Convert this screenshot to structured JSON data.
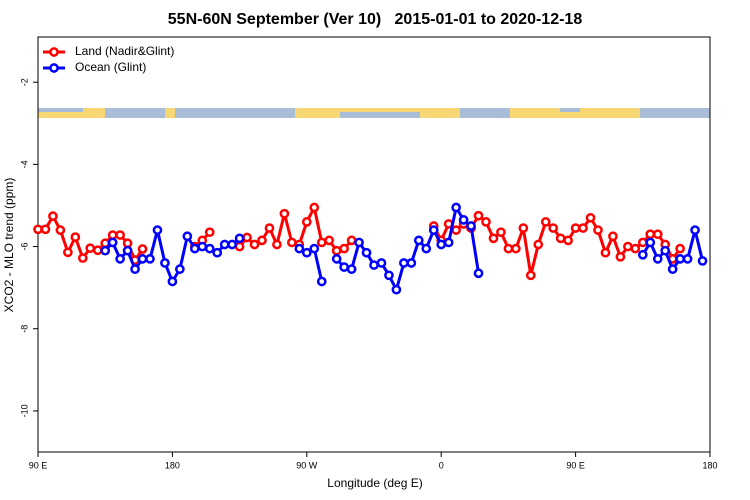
{
  "chart_data": {
    "type": "line",
    "title": "55N-60N September (Ver 10)   2015-01-01 to 2020-12-18",
    "x_label": "Longitude (deg E)",
    "y_label": "XCO2 - MLO trend (ppm)",
    "x": [
      90,
      95,
      100,
      105,
      110,
      115,
      120,
      125,
      130,
      135,
      140,
      145,
      150,
      155,
      160,
      165,
      170,
      175,
      180,
      185,
      190,
      195,
      200,
      205,
      210,
      215,
      220,
      225,
      230,
      235,
      240,
      245,
      250,
      255,
      260,
      265,
      270,
      275,
      280,
      285,
      290,
      295,
      300,
      305,
      310,
      315,
      320,
      325,
      330,
      335,
      340,
      345,
      350,
      355,
      360,
      365,
      370,
      375,
      380,
      385,
      390,
      395,
      400,
      405,
      410,
      415,
      420,
      425,
      430,
      435,
      440,
      445,
      450,
      455,
      460,
      465,
      470,
      475,
      480,
      485,
      490,
      495,
      500,
      505,
      510,
      515,
      520,
      525,
      530,
      535,
      540
    ],
    "series": [
      {
        "name": "Land (Nadir&Glint)",
        "color": "#ff0000",
        "values": [
          -5.58,
          -5.58,
          -5.26,
          -5.6,
          -6.14,
          -5.77,
          -6.28,
          -6.04,
          -6.09,
          -5.92,
          -5.72,
          -5.72,
          -5.92,
          -6.33,
          -6.06,
          null,
          null,
          null,
          null,
          null,
          null,
          -6.0,
          -5.85,
          -5.65,
          null,
          null,
          null,
          -6.0,
          -5.78,
          -5.95,
          -5.85,
          -5.55,
          -5.95,
          -5.2,
          -5.9,
          -5.95,
          -5.4,
          -5.05,
          -5.9,
          -5.85,
          -6.1,
          -6.05,
          -5.85,
          null,
          null,
          null,
          null,
          null,
          null,
          null,
          null,
          null,
          null,
          -5.5,
          -5.85,
          -5.45,
          -5.6,
          -5.45,
          -5.55,
          -5.25,
          -5.4,
          -5.8,
          -5.65,
          -6.05,
          -6.05,
          -5.55,
          -6.7,
          -5.95,
          -5.4,
          -5.55,
          -5.8,
          -5.85,
          -5.55,
          -5.55,
          -5.3,
          -5.6,
          -6.15,
          -5.75,
          -6.25,
          -6.0,
          -6.05,
          -5.9,
          -5.7,
          -5.7,
          -5.95,
          -6.3,
          -6.05,
          null,
          null,
          null,
          null
        ]
      },
      {
        "name": "Ocean (Glint)",
        "color": "#0000ff",
        "values": [
          null,
          null,
          null,
          null,
          null,
          null,
          null,
          null,
          null,
          -6.1,
          -5.9,
          -6.3,
          -6.1,
          -6.55,
          -6.3,
          -6.3,
          -5.6,
          -6.4,
          -6.85,
          -6.55,
          -5.75,
          -6.05,
          -6.0,
          -6.05,
          -6.15,
          -5.95,
          -5.95,
          -5.8,
          null,
          null,
          null,
          null,
          null,
          null,
          null,
          -6.05,
          -6.15,
          -6.05,
          -6.85,
          null,
          -6.3,
          -6.5,
          -6.55,
          -5.9,
          -6.15,
          -6.45,
          -6.4,
          -6.7,
          -7.05,
          -6.4,
          -6.4,
          -5.85,
          -6.05,
          -5.6,
          -5.95,
          -5.9,
          -5.05,
          -5.35,
          -5.5,
          -6.65,
          null,
          null,
          null,
          null,
          null,
          null,
          null,
          null,
          null,
          null,
          null,
          null,
          null,
          null,
          null,
          null,
          null,
          null,
          null,
          null,
          null,
          -6.2,
          -5.9,
          -6.3,
          -6.1,
          -6.55,
          -6.3,
          -6.3,
          -5.6,
          -6.35,
          null
        ]
      }
    ],
    "xlim": [
      90,
      540
    ],
    "xticks": [
      {
        "value": 90,
        "label": "90 E"
      },
      {
        "value": 180,
        "label": "180"
      },
      {
        "value": 270,
        "label": "90 W"
      },
      {
        "value": 360,
        "label": "0"
      },
      {
        "value": 450,
        "label": "90 E"
      },
      {
        "value": 540,
        "label": "180"
      }
    ],
    "ylim": [
      -11,
      -0.9
    ],
    "yticks": [
      -10,
      -8,
      -6,
      -4,
      -2
    ],
    "legend": "top-left"
  }
}
